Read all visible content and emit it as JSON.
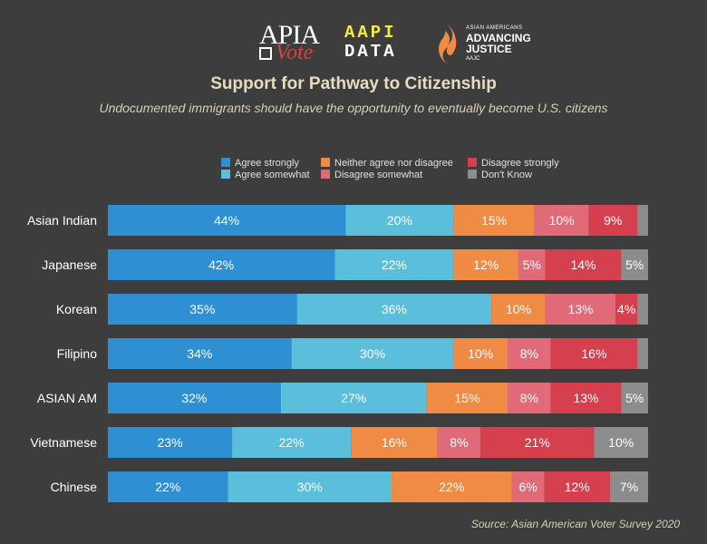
{
  "logos": {
    "apia_top": "APIA",
    "apia_bottom": "Vote",
    "aapi_row1": "AAPI",
    "aapi_row2": "DATA",
    "aajc_small": "ASIAN AMERICANS",
    "aajc_line1": "ADVANCING",
    "aajc_line2": "JUSTICE",
    "aajc_tiny": "AAJC"
  },
  "source": "Source: Asian American Voter Survey 2020",
  "colors": {
    "background": "#3d3d3d",
    "agree_strongly": "#2e8fd3",
    "agree_somewhat": "#5bbfdc",
    "neither": "#ef8b45",
    "disagree_somewhat": "#e06a78",
    "disagree_strongly": "#d4404e",
    "dont_know": "#8c8c8c"
  },
  "chart_data": {
    "type": "bar",
    "orientation": "horizontal",
    "stacked": true,
    "title": "Support for Pathway to Citizenship",
    "subtitle": "Undocumented immigrants should have the opportunity to eventually become U.S. citizens",
    "legend_position": "top",
    "xlim": [
      0,
      100
    ],
    "categories": [
      "Asian Indian",
      "Japanese",
      "Korean",
      "Filipino",
      "ASIAN AM",
      "Vietnamese",
      "Chinese"
    ],
    "series": [
      {
        "name": "Agree strongly",
        "color": "#2e8fd3",
        "values": [
          44,
          42,
          35,
          34,
          32,
          23,
          22
        ],
        "labels": [
          "44%",
          "42%",
          "35%",
          "34%",
          "32%",
          "23%",
          "22%"
        ]
      },
      {
        "name": "Agree somewhat",
        "color": "#5bbfdc",
        "values": [
          20,
          22,
          36,
          30,
          27,
          22,
          30
        ],
        "labels": [
          "20%",
          "22%",
          "36%",
          "30%",
          "27%",
          "22%",
          "30%"
        ]
      },
      {
        "name": "Neither agree nor disagree",
        "color": "#ef8b45",
        "values": [
          15,
          12,
          10,
          10,
          15,
          16,
          22
        ],
        "labels": [
          "15%",
          "12%",
          "10%",
          "10%",
          "15%",
          "16%",
          "22%"
        ]
      },
      {
        "name": "Disagree somewhat",
        "color": "#e06a78",
        "values": [
          10,
          5,
          13,
          8,
          8,
          8,
          6
        ],
        "labels": [
          "10%",
          "5%",
          "13%",
          "8%",
          "8%",
          "8%",
          "6%"
        ]
      },
      {
        "name": "Disagree strongly",
        "color": "#d4404e",
        "values": [
          9,
          14,
          4,
          16,
          13,
          21,
          12
        ],
        "labels": [
          "9%",
          "14%",
          "4%",
          "16%",
          "13%",
          "21%",
          "12%"
        ]
      },
      {
        "name": "Don't Know",
        "color": "#8c8c8c",
        "values": [
          2,
          5,
          2,
          2,
          5,
          10,
          7
        ],
        "labels": [
          "",
          "5%",
          "",
          "",
          "5%",
          "10%",
          "7%"
        ]
      }
    ]
  }
}
